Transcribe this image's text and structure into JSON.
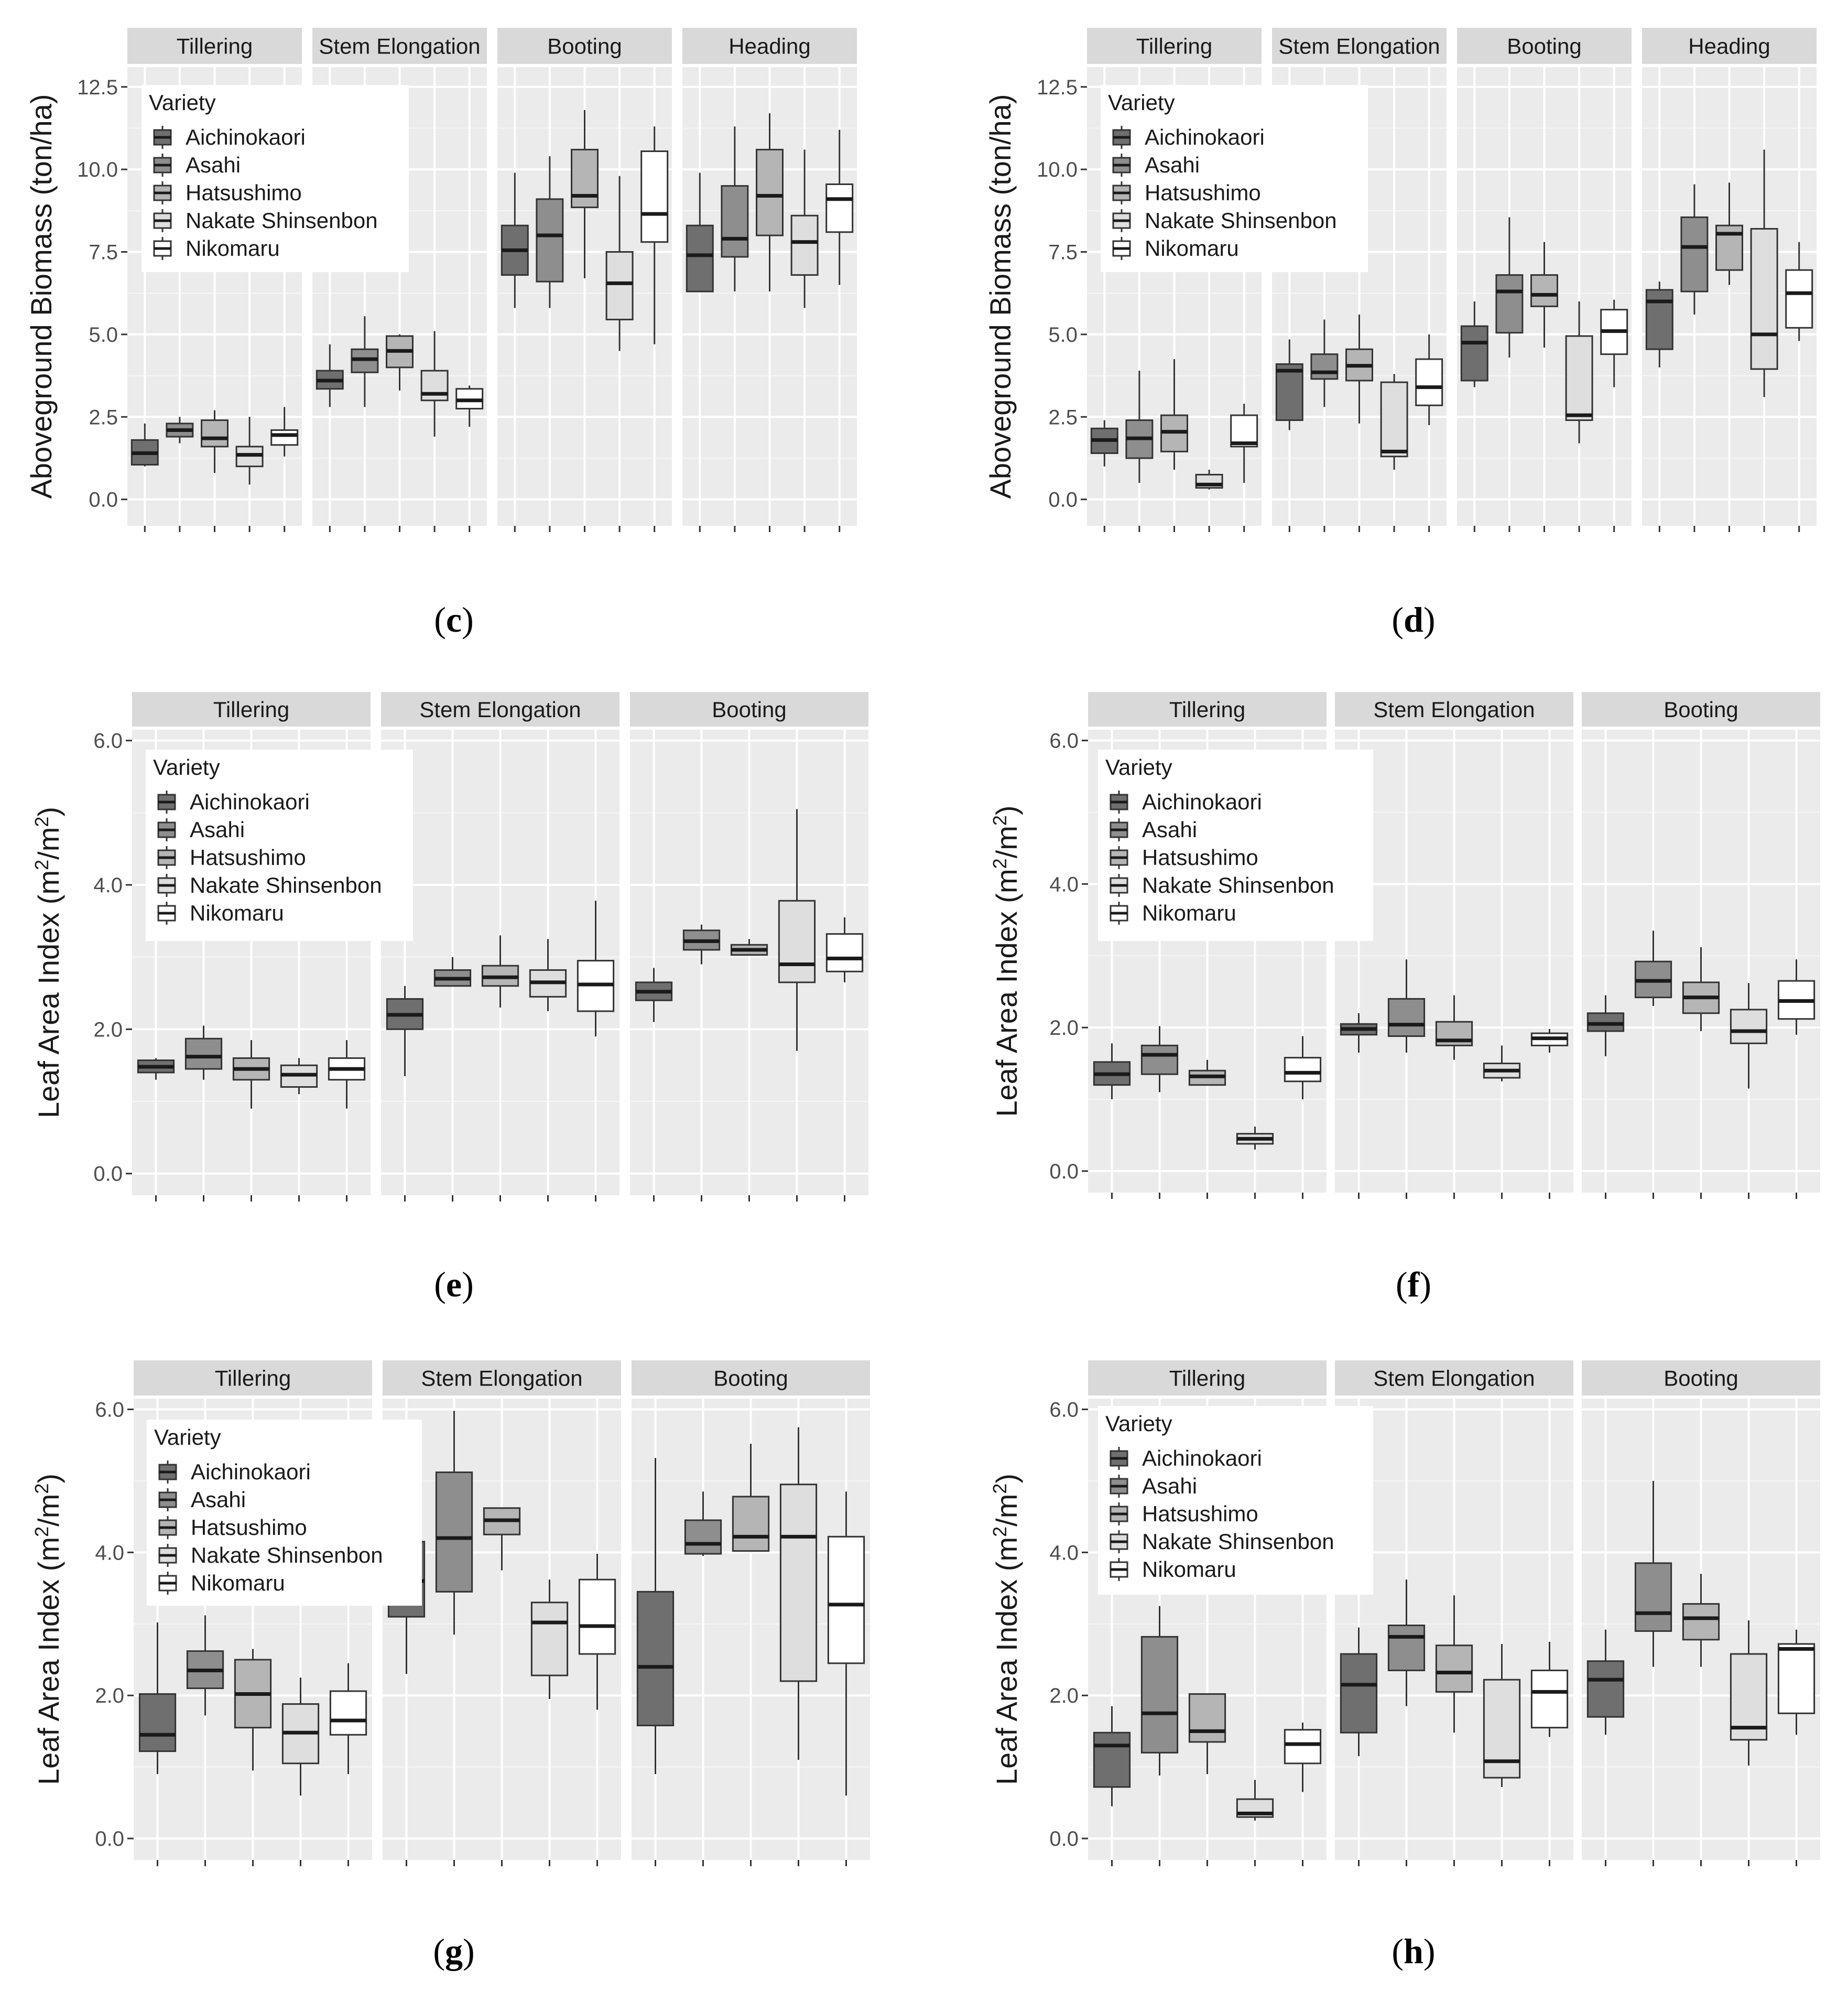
{
  "figure": {
    "legend_title": "Variety",
    "varieties": [
      "Aichinokaori",
      "Asahi",
      "Hatsushimo",
      "Nakate Shinsenbon",
      "Nikomaru"
    ],
    "colors": [
      "#6f6f6f",
      "#8e8e8e",
      "#b5b5b5",
      "#dedede",
      "#ffffff"
    ]
  },
  "chart_data": [
    {
      "type": "boxplot",
      "panel_label": "c",
      "ylabel": "Aboveground Biomass (ton/ha)",
      "ylabel_sup": false,
      "ylim": [
        -0.8,
        13.1
      ],
      "yticks": [
        0.0,
        2.5,
        5.0,
        7.5,
        10.0,
        12.5
      ],
      "ytick_labels": [
        "0.0",
        "2.5",
        "5.0",
        "7.5",
        "10.0",
        "12.5"
      ],
      "facets": [
        "Tillering",
        "Stem Elongation",
        "Booting",
        "Heading"
      ],
      "boxes": [
        [
          [
            1.0,
            1.05,
            1.4,
            1.8,
            2.3
          ],
          [
            1.7,
            1.9,
            2.1,
            2.3,
            2.5
          ],
          [
            0.8,
            1.6,
            1.85,
            2.4,
            2.7
          ],
          [
            0.45,
            1.0,
            1.35,
            1.6,
            2.5
          ],
          [
            1.3,
            1.65,
            1.95,
            2.1,
            2.8
          ]
        ],
        [
          [
            2.8,
            3.35,
            3.6,
            3.9,
            4.7
          ],
          [
            2.8,
            3.85,
            4.25,
            4.55,
            5.55
          ],
          [
            3.3,
            4.0,
            4.5,
            4.95,
            5.0
          ],
          [
            1.9,
            3.0,
            3.2,
            3.9,
            5.1
          ],
          [
            2.2,
            2.75,
            3.0,
            3.35,
            3.45
          ]
        ],
        [
          [
            5.8,
            6.8,
            7.55,
            8.3,
            9.9
          ],
          [
            5.8,
            6.6,
            8.0,
            9.1,
            10.4
          ],
          [
            6.7,
            8.85,
            9.2,
            10.6,
            11.8
          ],
          [
            4.5,
            5.45,
            6.55,
            7.5,
            9.8
          ],
          [
            4.7,
            7.8,
            8.65,
            10.55,
            11.3
          ]
        ],
        [
          [
            6.3,
            6.3,
            7.4,
            8.3,
            9.9
          ],
          [
            6.3,
            7.35,
            7.9,
            9.5,
            11.3
          ],
          [
            6.3,
            8.0,
            9.2,
            10.6,
            11.7
          ],
          [
            5.8,
            6.8,
            7.8,
            8.6,
            10.6
          ],
          [
            6.5,
            8.1,
            9.1,
            9.55,
            11.2
          ]
        ]
      ]
    },
    {
      "type": "boxplot",
      "panel_label": "d",
      "ylabel": "Aboveground Biomass (ton/ha)",
      "ylabel_sup": false,
      "ylim": [
        -0.8,
        13.1
      ],
      "yticks": [
        0.0,
        2.5,
        5.0,
        7.5,
        10.0,
        12.5
      ],
      "ytick_labels": [
        "0.0",
        "2.5",
        "5.0",
        "7.5",
        "10.0",
        "12.5"
      ],
      "facets": [
        "Tillering",
        "Stem Elongation",
        "Booting",
        "Heading"
      ],
      "boxes": [
        [
          [
            1.0,
            1.4,
            1.8,
            2.15,
            2.4
          ],
          [
            0.5,
            1.25,
            1.85,
            2.4,
            3.9
          ],
          [
            0.9,
            1.45,
            2.05,
            2.55,
            4.25
          ],
          [
            0.3,
            0.35,
            0.45,
            0.75,
            0.9
          ],
          [
            0.5,
            1.6,
            1.7,
            2.55,
            2.9
          ]
        ],
        [
          [
            2.1,
            2.4,
            3.9,
            4.1,
            4.85
          ],
          [
            2.8,
            3.65,
            3.85,
            4.4,
            5.45
          ],
          [
            2.3,
            3.6,
            4.05,
            4.55,
            5.6
          ],
          [
            0.9,
            1.3,
            1.45,
            3.55,
            3.8
          ],
          [
            2.25,
            2.85,
            3.4,
            4.25,
            5.0
          ]
        ],
        [
          [
            3.4,
            3.6,
            4.75,
            5.25,
            6.0
          ],
          [
            4.3,
            5.05,
            6.3,
            6.8,
            8.55
          ],
          [
            4.6,
            5.85,
            6.2,
            6.8,
            7.8
          ],
          [
            1.7,
            2.4,
            2.55,
            4.95,
            6.0
          ],
          [
            3.4,
            4.4,
            5.1,
            5.75,
            6.05
          ]
        ],
        [
          [
            4.0,
            4.55,
            6.0,
            6.35,
            6.6
          ],
          [
            5.6,
            6.3,
            7.65,
            8.55,
            9.55
          ],
          [
            6.5,
            6.95,
            8.05,
            8.3,
            9.6
          ],
          [
            3.1,
            3.95,
            5.0,
            8.2,
            10.6
          ],
          [
            4.8,
            5.2,
            6.25,
            6.95,
            7.8
          ]
        ]
      ]
    },
    {
      "type": "boxplot",
      "panel_label": "e",
      "ylabel": "Leaf Area Index (m2/m2)",
      "ylabel_sup": true,
      "ylim": [
        -0.3,
        6.15
      ],
      "yticks": [
        0.0,
        2.0,
        4.0,
        6.0
      ],
      "ytick_labels": [
        "0.0",
        "2.0",
        "4.0",
        "6.0"
      ],
      "facets": [
        "Tillering",
        "Stem Elongation",
        "Booting"
      ],
      "boxes": [
        [
          [
            1.3,
            1.4,
            1.48,
            1.57,
            1.6
          ],
          [
            1.3,
            1.45,
            1.62,
            1.87,
            2.05
          ],
          [
            0.9,
            1.3,
            1.45,
            1.6,
            1.85
          ],
          [
            1.1,
            1.2,
            1.37,
            1.5,
            1.6
          ],
          [
            0.9,
            1.3,
            1.45,
            1.6,
            1.85
          ]
        ],
        [
          [
            1.35,
            2.0,
            2.2,
            2.42,
            2.6
          ],
          [
            2.6,
            2.6,
            2.7,
            2.82,
            3.0
          ],
          [
            2.3,
            2.6,
            2.72,
            2.88,
            3.3
          ],
          [
            2.25,
            2.45,
            2.65,
            2.82,
            3.25
          ],
          [
            1.9,
            2.25,
            2.62,
            2.95,
            3.78
          ]
        ],
        [
          [
            2.1,
            2.4,
            2.52,
            2.65,
            2.85
          ],
          [
            2.9,
            3.1,
            3.22,
            3.37,
            3.45
          ],
          [
            3.05,
            3.03,
            3.1,
            3.17,
            3.25
          ],
          [
            1.7,
            2.65,
            2.9,
            3.78,
            5.05
          ],
          [
            2.65,
            2.8,
            2.98,
            3.32,
            3.55
          ]
        ]
      ]
    },
    {
      "type": "boxplot",
      "panel_label": "f",
      "ylabel": "Leaf Area Index (m2/m2)",
      "ylabel_sup": true,
      "ylim": [
        -0.3,
        6.15
      ],
      "yticks": [
        0.0,
        2.0,
        4.0,
        6.0
      ],
      "ytick_labels": [
        "0.0",
        "2.0",
        "4.0",
        "6.0"
      ],
      "facets": [
        "Tillering",
        "Stem Elongation",
        "Booting"
      ],
      "boxes": [
        [
          [
            1.0,
            1.2,
            1.35,
            1.52,
            1.78
          ],
          [
            1.1,
            1.35,
            1.62,
            1.75,
            2.02
          ],
          [
            1.2,
            1.2,
            1.32,
            1.4,
            1.55
          ],
          [
            0.3,
            0.38,
            0.45,
            0.52,
            0.62
          ],
          [
            1.0,
            1.25,
            1.37,
            1.58,
            1.88
          ]
        ],
        [
          [
            1.65,
            1.9,
            1.98,
            2.05,
            2.2
          ],
          [
            1.65,
            1.88,
            2.04,
            2.4,
            2.95
          ],
          [
            1.55,
            1.75,
            1.82,
            2.08,
            2.45
          ],
          [
            1.25,
            1.3,
            1.4,
            1.5,
            1.75
          ],
          [
            1.65,
            1.75,
            1.85,
            1.92,
            1.98
          ]
        ],
        [
          [
            1.6,
            1.95,
            2.05,
            2.2,
            2.45
          ],
          [
            2.3,
            2.42,
            2.65,
            2.92,
            3.35
          ],
          [
            1.95,
            2.2,
            2.42,
            2.63,
            3.12
          ],
          [
            1.15,
            1.78,
            1.95,
            2.25,
            2.62
          ],
          [
            1.9,
            2.12,
            2.37,
            2.65,
            2.95
          ]
        ]
      ]
    },
    {
      "type": "boxplot",
      "panel_label": "g",
      "ylabel": "Leaf Area Index (m2/m2)",
      "ylabel_sup": true,
      "ylim": [
        -0.3,
        6.15
      ],
      "yticks": [
        0.0,
        2.0,
        4.0,
        6.0
      ],
      "ytick_labels": [
        "0.0",
        "2.0",
        "4.0",
        "6.0"
      ],
      "facets": [
        "Tillering",
        "Stem Elongation",
        "Booting"
      ],
      "boxes": [
        [
          [
            0.9,
            1.22,
            1.45,
            2.02,
            3.02
          ],
          [
            1.72,
            2.1,
            2.35,
            2.62,
            3.12
          ],
          [
            0.95,
            1.55,
            2.02,
            2.5,
            2.65
          ],
          [
            0.6,
            1.05,
            1.48,
            1.88,
            2.25
          ],
          [
            0.9,
            1.45,
            1.65,
            2.06,
            2.45
          ]
        ],
        [
          [
            2.3,
            3.1,
            3.6,
            4.15,
            4.95
          ],
          [
            2.85,
            3.45,
            4.2,
            5.12,
            5.98
          ],
          [
            3.75,
            4.25,
            4.45,
            4.62,
            4.62
          ],
          [
            1.95,
            2.28,
            3.02,
            3.3,
            3.62
          ],
          [
            1.8,
            2.58,
            2.97,
            3.62,
            3.98
          ]
        ],
        [
          [
            0.9,
            1.58,
            2.4,
            3.45,
            5.32
          ],
          [
            3.95,
            3.98,
            4.12,
            4.45,
            4.85
          ],
          [
            4.02,
            4.02,
            4.22,
            4.78,
            5.52
          ],
          [
            1.1,
            2.2,
            4.22,
            4.95,
            5.75
          ],
          [
            0.6,
            2.45,
            3.27,
            4.22,
            4.85
          ]
        ]
      ]
    },
    {
      "type": "boxplot",
      "panel_label": "h",
      "ylabel": "Leaf Area Index (m2/m2)",
      "ylabel_sup": true,
      "ylim": [
        -0.3,
        6.15
      ],
      "yticks": [
        0.0,
        2.0,
        4.0,
        6.0
      ],
      "ytick_labels": [
        "0.0",
        "2.0",
        "4.0",
        "6.0"
      ],
      "facets": [
        "Tillering",
        "Stem Elongation",
        "Booting"
      ],
      "boxes": [
        [
          [
            0.45,
            0.72,
            1.3,
            1.48,
            1.85
          ],
          [
            0.88,
            1.2,
            1.75,
            2.82,
            3.25
          ],
          [
            0.9,
            1.35,
            1.5,
            2.02,
            2.02
          ],
          [
            0.25,
            0.3,
            0.35,
            0.55,
            0.82
          ],
          [
            0.65,
            1.05,
            1.32,
            1.52,
            1.62
          ]
        ],
        [
          [
            1.15,
            1.48,
            2.15,
            2.58,
            2.95
          ],
          [
            1.85,
            2.35,
            2.82,
            2.98,
            3.62
          ],
          [
            1.48,
            2.05,
            2.32,
            2.7,
            3.4
          ],
          [
            0.72,
            0.85,
            1.08,
            2.22,
            2.72
          ],
          [
            1.42,
            1.55,
            2.05,
            2.35,
            2.75
          ]
        ],
        [
          [
            1.45,
            1.7,
            2.22,
            2.48,
            2.92
          ],
          [
            2.4,
            2.9,
            3.15,
            3.85,
            5.0
          ],
          [
            2.4,
            2.78,
            3.08,
            3.28,
            3.7
          ],
          [
            1.02,
            1.38,
            1.55,
            2.58,
            3.05
          ],
          [
            1.45,
            1.75,
            2.65,
            2.72,
            2.92
          ]
        ]
      ]
    }
  ]
}
